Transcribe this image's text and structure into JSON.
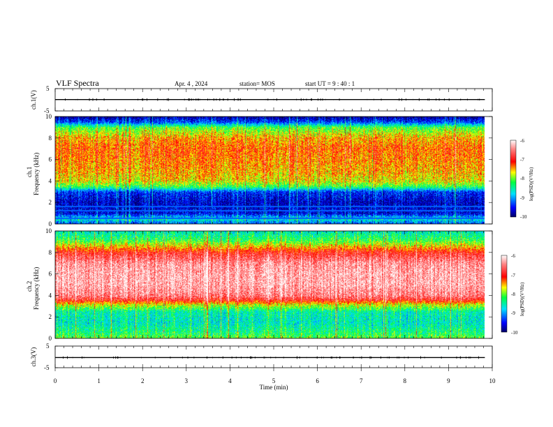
{
  "header": {
    "title": "VLF Spectra",
    "date": "Apr. 4 , 2024",
    "station": "station= MOS",
    "start_ut": "start  UT =   9 : 40 : 1"
  },
  "chart_data": [
    {
      "type": "line",
      "panel": "ch1-waveform",
      "ylabel": "ch.1(V)",
      "ylim": [
        -5,
        5
      ],
      "yticks": [
        "5",
        "-5"
      ],
      "x": [
        0,
        1,
        2,
        3,
        4,
        5,
        6,
        7,
        8,
        9,
        9.83
      ],
      "series": [
        {
          "values": [
            0.1,
            0.1,
            0.1,
            0.1,
            0.1,
            0.1,
            0.1,
            0.1,
            0.1,
            0.1,
            0.1
          ]
        }
      ]
    },
    {
      "type": "heatmap",
      "panel": "ch1-spectrogram",
      "ylabel": "ch.1\nFrequency (kHz)",
      "ylabel_lines": [
        "ch.1",
        "Frequency (kHz)"
      ],
      "ylim": [
        0,
        10
      ],
      "yticks": [
        "0",
        "2",
        "4",
        "6",
        "8",
        "10"
      ],
      "xlim": [
        0,
        10
      ],
      "data_end_min": 9.83,
      "band_profile_kHz_logPSD": [
        [
          0.0,
          -9.3
        ],
        [
          0.5,
          -8.6
        ],
        [
          1.0,
          -9.6
        ],
        [
          2.0,
          -9.7
        ],
        [
          3.0,
          -9.4
        ],
        [
          3.5,
          -8.2
        ],
        [
          4.0,
          -7.7
        ],
        [
          5.0,
          -7.5
        ],
        [
          6.0,
          -7.4
        ],
        [
          7.0,
          -7.3
        ],
        [
          8.0,
          -7.5
        ],
        [
          9.0,
          -8.1
        ],
        [
          9.5,
          -9.3
        ],
        [
          10.0,
          -9.8
        ]
      ],
      "colorbar": {
        "label": "log(PSD)(V²/Hz)",
        "range": [
          -10,
          -6
        ],
        "ticks": [
          "-6",
          "-7",
          "-8",
          "-9",
          "-10"
        ]
      }
    },
    {
      "type": "heatmap",
      "panel": "ch2-spectrogram",
      "ylabel": "ch.2\nFrequency (kHz)",
      "ylabel_lines": [
        "ch.2",
        "Frequency (kHz)"
      ],
      "ylim": [
        0,
        10
      ],
      "yticks": [
        "0",
        "2",
        "4",
        "6",
        "8",
        "10"
      ],
      "xlim": [
        0,
        10
      ],
      "data_end_min": 9.83,
      "band_profile_kHz_logPSD": [
        [
          0.0,
          -8.0
        ],
        [
          0.5,
          -8.3
        ],
        [
          1.5,
          -8.6
        ],
        [
          2.5,
          -8.5
        ],
        [
          3.2,
          -7.7
        ],
        [
          3.6,
          -6.9
        ],
        [
          4.0,
          -6.5
        ],
        [
          5.0,
          -6.3
        ],
        [
          6.0,
          -6.3
        ],
        [
          7.0,
          -6.4
        ],
        [
          8.0,
          -6.9
        ],
        [
          8.6,
          -7.6
        ],
        [
          9.2,
          -8.2
        ],
        [
          10.0,
          -8.6
        ]
      ],
      "colorbar": {
        "label": "log(PSD)(V²/Hz)",
        "range": [
          -10,
          -6
        ],
        "ticks": [
          "-6",
          "-7",
          "-8",
          "-9",
          "-10"
        ]
      }
    },
    {
      "type": "line",
      "panel": "ch3-waveform",
      "ylabel": "ch.3(V)",
      "ylim": [
        -5,
        5
      ],
      "yticks": [
        "5",
        "-5"
      ],
      "xlabel": "Time  (min)",
      "xlim": [
        0,
        10
      ],
      "xticks": [
        "0",
        "1",
        "2",
        "3",
        "4",
        "5",
        "6",
        "7",
        "8",
        "9",
        "10"
      ],
      "x": [
        0,
        1,
        2,
        3,
        4,
        5,
        6,
        7,
        8,
        9,
        9.83
      ],
      "series": [
        {
          "values": [
            -0.3,
            -0.3,
            -0.3,
            -0.3,
            -0.3,
            -0.3,
            -0.3,
            -0.3,
            -0.3,
            -0.3,
            -0.3
          ]
        }
      ]
    }
  ],
  "colormap": [
    "#000066",
    "#0000ff",
    "#00e0ff",
    "#00ff40",
    "#ffff00",
    "#ff0000",
    "#ffffff"
  ]
}
